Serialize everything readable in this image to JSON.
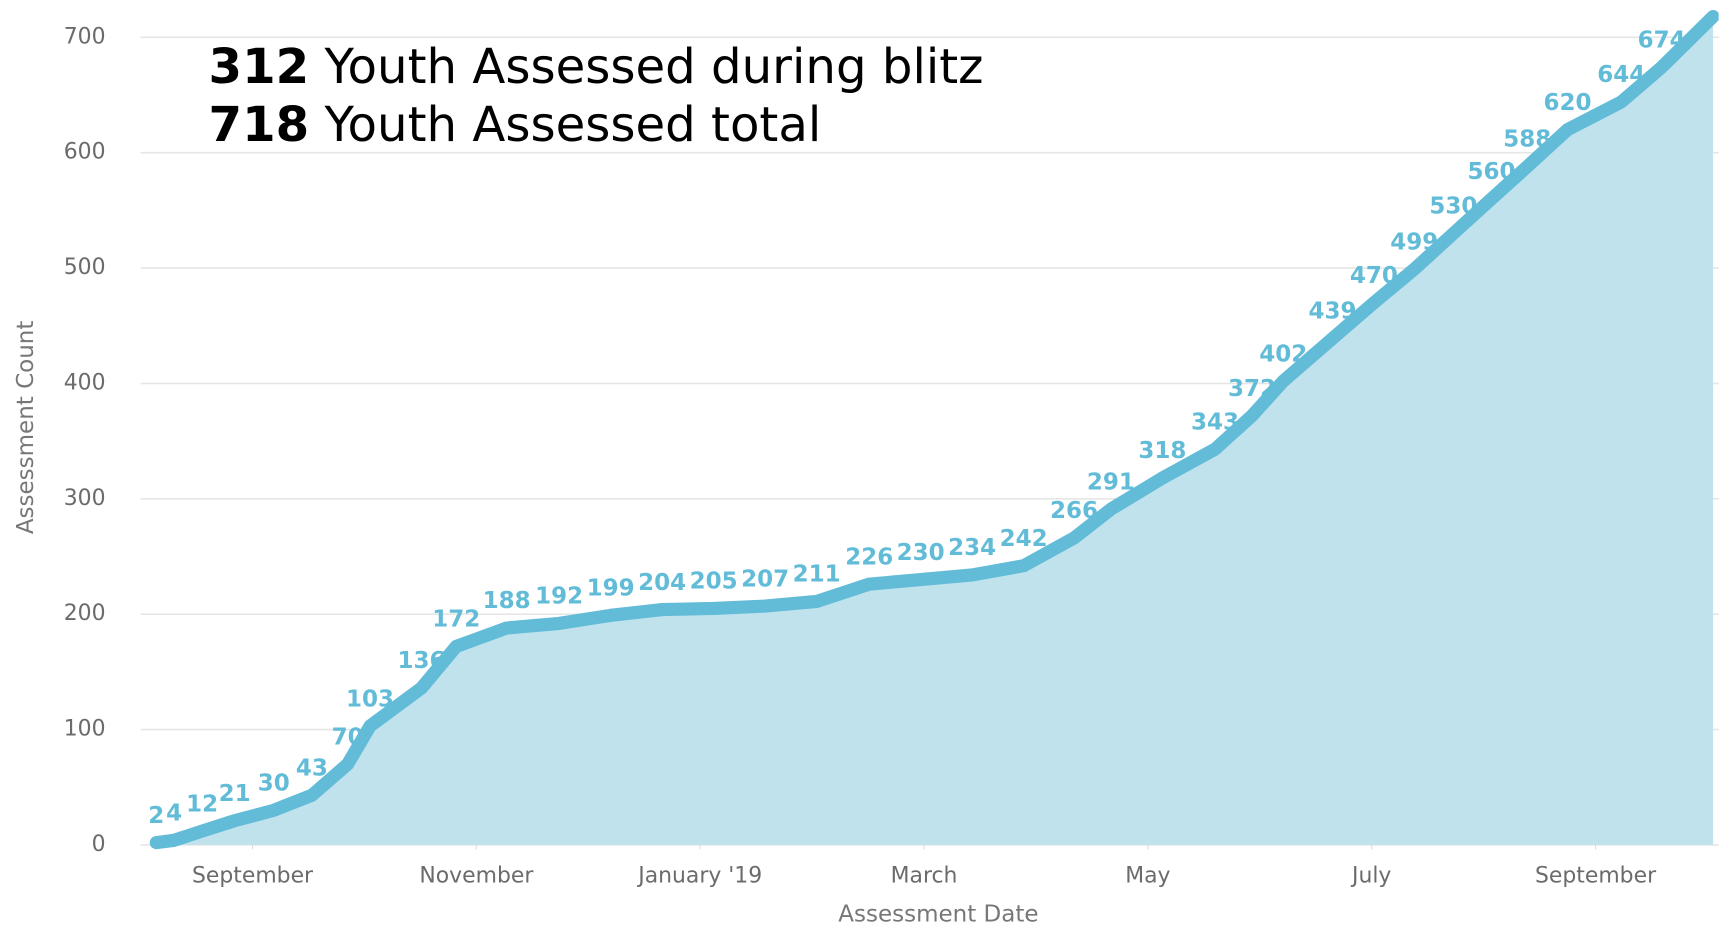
{
  "chart_data": {
    "type": "area",
    "annotations": [
      {
        "number": "312",
        "text": "Youth Assessed during blitz"
      },
      {
        "number": "718",
        "text": "Youth Assessed total"
      }
    ],
    "ylabel": "Assessment Count",
    "xlabel": "Assessment Date",
    "xlim": [
      8,
      22.1
    ],
    "xticks": [
      {
        "value": 9,
        "label": "September"
      },
      {
        "value": 11,
        "label": "November"
      },
      {
        "value": 13,
        "label": "January '19"
      },
      {
        "value": 15,
        "label": "March"
      },
      {
        "value": 17,
        "label": "May"
      },
      {
        "value": 19,
        "label": "July"
      },
      {
        "value": 21,
        "label": "September"
      }
    ],
    "ylim": [
      0,
      720
    ],
    "yticks": [
      0,
      100,
      200,
      300,
      400,
      500,
      600,
      700
    ],
    "grid": true,
    "line_color": "#62bcd8",
    "fill_color": "#c0e2ec",
    "x": [
      8.14,
      8.3,
      8.55,
      8.84,
      9.19,
      9.53,
      9.85,
      10.05,
      10.51,
      10.82,
      11.27,
      11.74,
      12.2,
      12.66,
      13.12,
      13.58,
      14.04,
      14.51,
      14.97,
      15.43,
      15.89,
      16.34,
      16.67,
      17.13,
      17.6,
      17.93,
      18.21,
      18.65,
      19.02,
      19.38,
      19.73,
      20.07,
      20.39,
      20.75,
      21.23,
      21.59,
      22.05
    ],
    "values": [
      2,
      4,
      12,
      21,
      30,
      43,
      70,
      103,
      136,
      172,
      188,
      192,
      199,
      204,
      205,
      207,
      211,
      226,
      230,
      234,
      242,
      266,
      291,
      318,
      343,
      372,
      402,
      439,
      470,
      499,
      530,
      560,
      588,
      620,
      644,
      674,
      718
    ],
    "value_labels": [
      "2",
      "4",
      "12",
      "21",
      "30",
      "43",
      "70",
      "103",
      "136",
      "172",
      "188",
      "192",
      "199",
      "204",
      "205",
      "207",
      "211",
      "226",
      "230",
      "234",
      "242",
      "266",
      "291",
      "318",
      "343",
      "372",
      "402",
      "439",
      "470",
      "499",
      "530",
      "560",
      "588",
      "620",
      "644",
      "674",
      null
    ]
  }
}
